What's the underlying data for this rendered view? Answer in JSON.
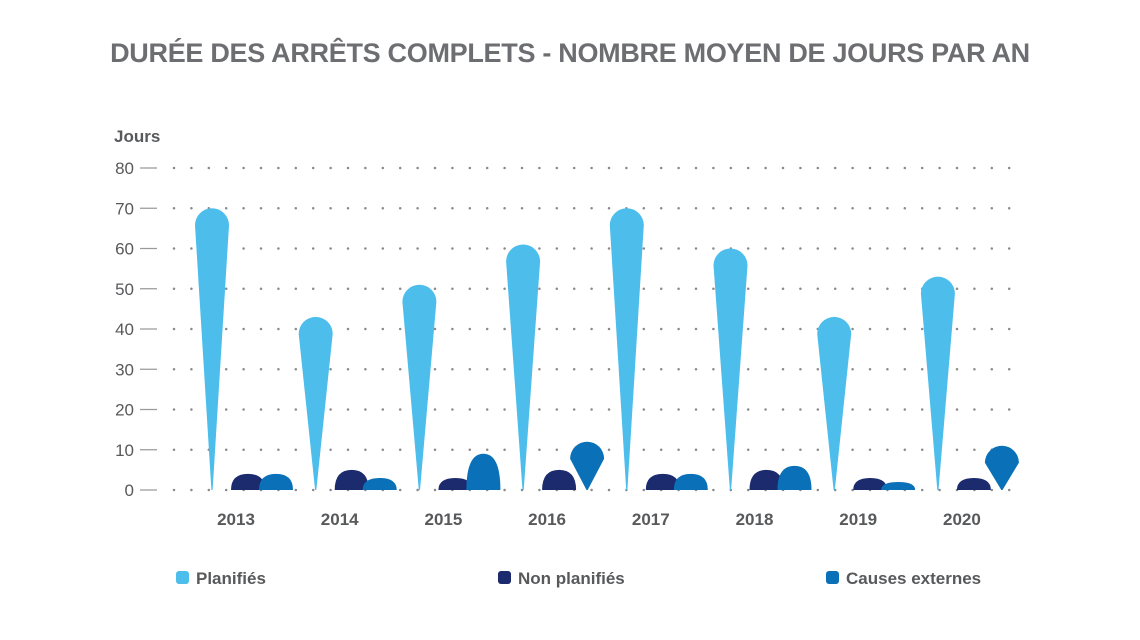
{
  "colors": {
    "planifies": "#4dbdec",
    "non_planifies": "#1c2a6e",
    "causes_externes": "#0a71b9",
    "text": "#58595b",
    "title": "#6d6e71",
    "grid": "#8a8a8a"
  },
  "chart_data": {
    "type": "bar",
    "title": "DURÉE DES ARRÊTS COMPLETS - NOMBRE MOYEN DE JOURS PAR AN",
    "ylabel": "Jours",
    "xlabel": "",
    "ylim": [
      0,
      80
    ],
    "yticks": [
      "0",
      "10",
      "20",
      "30",
      "40",
      "50",
      "60",
      "70",
      "80"
    ],
    "categories": [
      "2013",
      "2014",
      "2015",
      "2016",
      "2017",
      "2018",
      "2019",
      "2020"
    ],
    "series": [
      {
        "name": "Planifiés",
        "color_key": "planifies",
        "values": [
          70,
          43,
          51,
          61,
          70,
          60,
          43,
          53
        ]
      },
      {
        "name": "Non planifiés",
        "color_key": "non_planifies",
        "values": [
          3,
          4,
          2,
          4,
          3,
          4,
          2,
          2
        ]
      },
      {
        "name": "Causes externes",
        "color_key": "causes_externes",
        "values": [
          3,
          2,
          8,
          12,
          3,
          5,
          1,
          11
        ]
      }
    ],
    "legend_position": "bottom",
    "grid": true
  }
}
